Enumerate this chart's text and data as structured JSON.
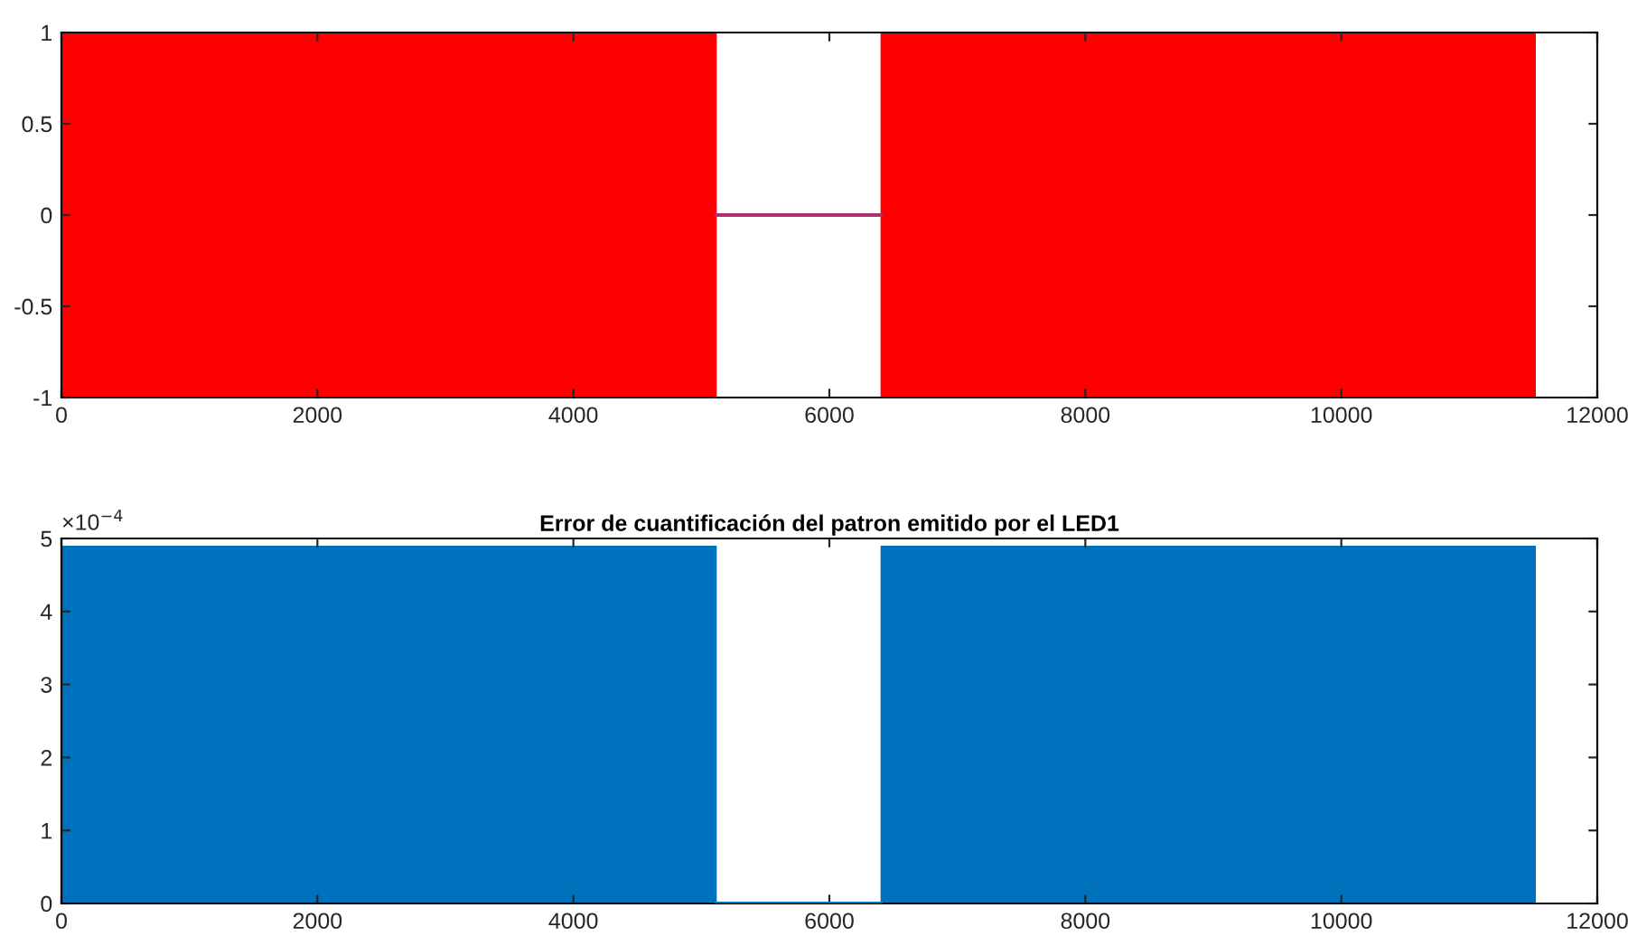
{
  "chart_data": [
    {
      "type": "area",
      "series": [
        {
          "color": "#ff0000",
          "x": [
            0,
            5120
          ],
          "values": [
            1,
            1
          ]
        },
        {
          "color": "#ff0000",
          "x": [
            0,
            5120
          ],
          "values": [
            -1,
            -1
          ]
        },
        {
          "color": "#ff0000",
          "x": [
            6400,
            11520
          ],
          "values": [
            1,
            1
          ]
        },
        {
          "color": "#ff0000",
          "x": [
            6400,
            11520
          ],
          "values": [
            -1,
            -1
          ]
        },
        {
          "type": "line",
          "color": "#b0306e",
          "x": [
            5120,
            6400
          ],
          "values": [
            0,
            0
          ]
        }
      ],
      "xlim": [
        0,
        12000
      ],
      "xticks": [
        0,
        2000,
        4000,
        6000,
        8000,
        10000,
        12000
      ],
      "ylim": [
        -1,
        1
      ],
      "yticks": [
        -1,
        -0.5,
        0,
        0.5,
        1
      ],
      "grid": false
    },
    {
      "type": "area",
      "title": "Error de cuantificación del patron emitido por el LED1",
      "series": [
        {
          "color": "#0072bd",
          "x": [
            0,
            5120
          ],
          "values": [
            4.9,
            4.9
          ]
        },
        {
          "type": "line",
          "color": "#0072bd",
          "x": [
            5120,
            6400
          ],
          "values": [
            0,
            0
          ]
        },
        {
          "color": "#0072bd",
          "x": [
            6400,
            11520
          ],
          "values": [
            4.9,
            4.9
          ]
        }
      ],
      "annotations": [
        "×10$^{−4}$"
      ],
      "xlim": [
        0,
        12000
      ],
      "xticks": [
        0,
        2000,
        4000,
        6000,
        8000,
        10000,
        12000
      ],
      "ylim": [
        0,
        5
      ],
      "yticks": [
        0,
        1,
        2,
        3,
        4,
        5
      ],
      "grid": false
    }
  ]
}
